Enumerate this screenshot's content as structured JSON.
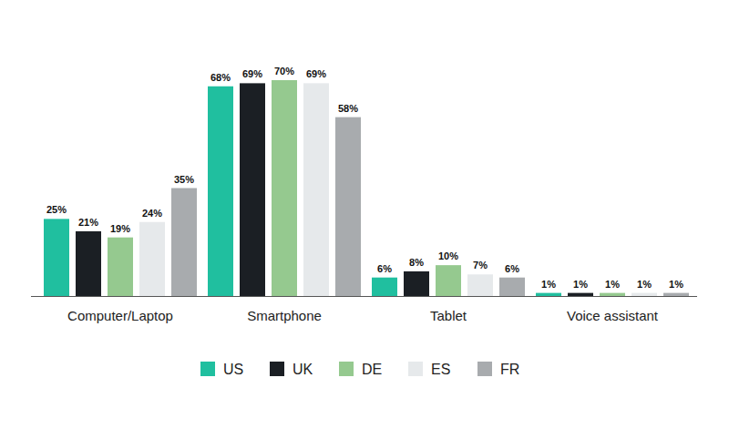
{
  "chart_data": {
    "type": "bar",
    "categories": [
      "Computer/Laptop",
      "Smartphone",
      "Tablet",
      "Voice assistant"
    ],
    "series": [
      {
        "name": "US",
        "color": "#20bf9f",
        "values": [
          25,
          68,
          6,
          1
        ],
        "value_labels": [
          "25%",
          "68%",
          "6%",
          "1%"
        ]
      },
      {
        "name": "UK",
        "color": "#1b1f24",
        "values": [
          21,
          69,
          8,
          1
        ],
        "value_labels": [
          "21%",
          "69%",
          "8%",
          "1%"
        ]
      },
      {
        "name": "DE",
        "color": "#95c98f",
        "values": [
          19,
          70,
          10,
          1
        ],
        "value_labels": [
          "19%",
          "70%",
          "10%",
          "1%"
        ]
      },
      {
        "name": "ES",
        "color": "#e6e9eb",
        "values": [
          24,
          69,
          7,
          1
        ],
        "value_labels": [
          "24%",
          "69%",
          "7%",
          "1%"
        ]
      },
      {
        "name": "FR",
        "color": "#a8abae",
        "values": [
          35,
          58,
          6,
          1
        ],
        "value_labels": [
          "35%",
          "58%",
          "6%",
          "1%"
        ]
      }
    ],
    "ylim": [
      0,
      70
    ],
    "data_labels": true,
    "tick_labels": "x",
    "legend": "bottom",
    "grid": false
  }
}
